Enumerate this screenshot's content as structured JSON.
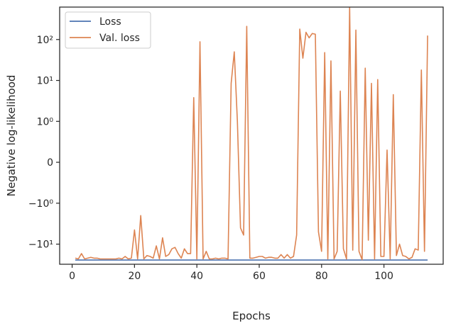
{
  "chart_data": {
    "type": "line",
    "xlabel": "Epochs",
    "ylabel": "Negative log-likelihood",
    "xlim": [
      -4,
      119
    ],
    "yscale": "symlog",
    "ylim": [
      -31,
      620
    ],
    "grid": false,
    "legend": "top-left",
    "x_ticks": [
      0,
      20,
      40,
      60,
      80,
      100
    ],
    "y_ticks": [
      {
        "value": 100,
        "label": "10²"
      },
      {
        "value": 10,
        "label": "10¹"
      },
      {
        "value": 1,
        "label": "10⁰"
      },
      {
        "value": 0,
        "label": "0"
      },
      {
        "value": -1,
        "label": "−10⁰"
      },
      {
        "value": -10,
        "label": "−10¹"
      }
    ],
    "series": [
      {
        "name": "Loss",
        "color": "#4c72b0",
        "x": [
          1,
          114
        ],
        "y": [
          -24.5,
          -24.5
        ]
      },
      {
        "name": "Val. loss",
        "color": "#dd8452",
        "x": [
          1,
          2,
          3,
          4,
          5,
          6,
          7,
          8,
          9,
          10,
          11,
          12,
          13,
          14,
          15,
          16,
          17,
          18,
          19,
          20,
          21,
          22,
          23,
          24,
          25,
          26,
          27,
          28,
          29,
          30,
          31,
          32,
          33,
          34,
          35,
          36,
          37,
          38,
          39,
          40,
          41,
          42,
          43,
          44,
          45,
          46,
          47,
          48,
          49,
          50,
          51,
          52,
          53,
          54,
          55,
          56,
          57,
          58,
          59,
          60,
          61,
          62,
          63,
          64,
          65,
          66,
          67,
          68,
          69,
          70,
          71,
          72,
          73,
          74,
          75,
          76,
          77,
          78,
          79,
          80,
          81,
          82,
          83,
          84,
          85,
          86,
          87,
          88,
          89,
          90,
          91,
          92,
          93,
          94,
          95,
          96,
          97,
          98,
          99,
          100,
          101,
          102,
          103,
          104,
          105,
          106,
          107,
          108,
          109,
          110,
          111,
          112,
          113,
          114
        ],
        "y": [
          -22,
          -23,
          -17,
          -23,
          -22,
          -21,
          -22,
          -22,
          -23,
          -23,
          -23,
          -23,
          -23,
          -23,
          -22,
          -23,
          -20,
          -23,
          -22,
          -4.5,
          -23,
          -2,
          -23,
          -19,
          -20,
          -22,
          -11,
          -23,
          -7,
          -20,
          -18,
          -13,
          -12,
          -17,
          -22,
          -13,
          -17,
          -17,
          3.8,
          -23,
          88,
          -23,
          -15,
          -23,
          -23,
          -22,
          -23,
          -22,
          -22,
          -23,
          8.5,
          50,
          1,
          -4,
          -6,
          210,
          -22,
          -22,
          -21,
          -20,
          -20,
          -22,
          -21,
          -21,
          -22,
          -22,
          -18,
          -22,
          -18,
          -22,
          -20,
          -6,
          180,
          35,
          150,
          110,
          140,
          135,
          -5,
          -15,
          48,
          -23,
          30,
          -23,
          -15,
          5.5,
          -13,
          -23,
          620,
          -14,
          170,
          -15,
          -24,
          20,
          -8,
          8.5,
          -23,
          10.5,
          -20,
          -20,
          0.3,
          -23,
          4.5,
          -19,
          -10,
          -19,
          -20,
          -23,
          -21,
          -13,
          -14,
          18,
          -15,
          125
        ]
      }
    ]
  }
}
